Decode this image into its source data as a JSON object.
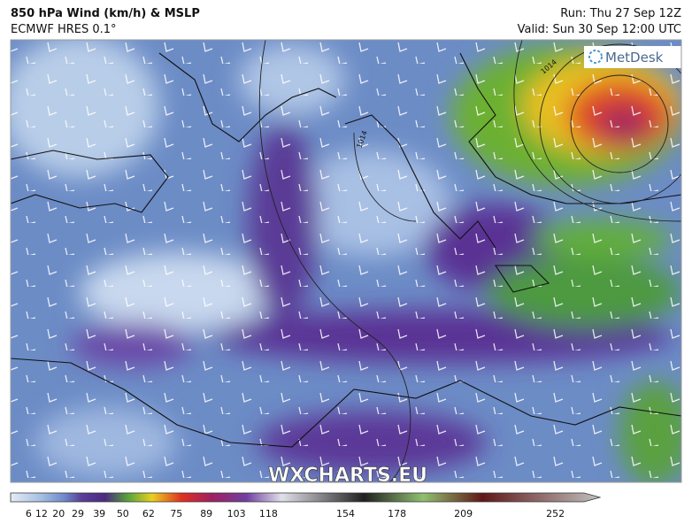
{
  "header": {
    "title": "850 hPa Wind (km/h) & MSLP",
    "subtitle": "ECMWF HRES 0.1°",
    "run": "Run: Thu 27 Sep 12Z",
    "valid": "Valid: Sun 30 Sep 12:00 UTC"
  },
  "logo": "MetDesk",
  "watermark": "WXCHARTS.EU",
  "isobar_labels": [
    "1014",
    "1014"
  ],
  "colorbar": {
    "ticks": [
      6,
      12,
      20,
      29,
      39,
      50,
      62,
      75,
      89,
      103,
      118,
      154,
      178,
      209,
      252
    ]
  }
}
